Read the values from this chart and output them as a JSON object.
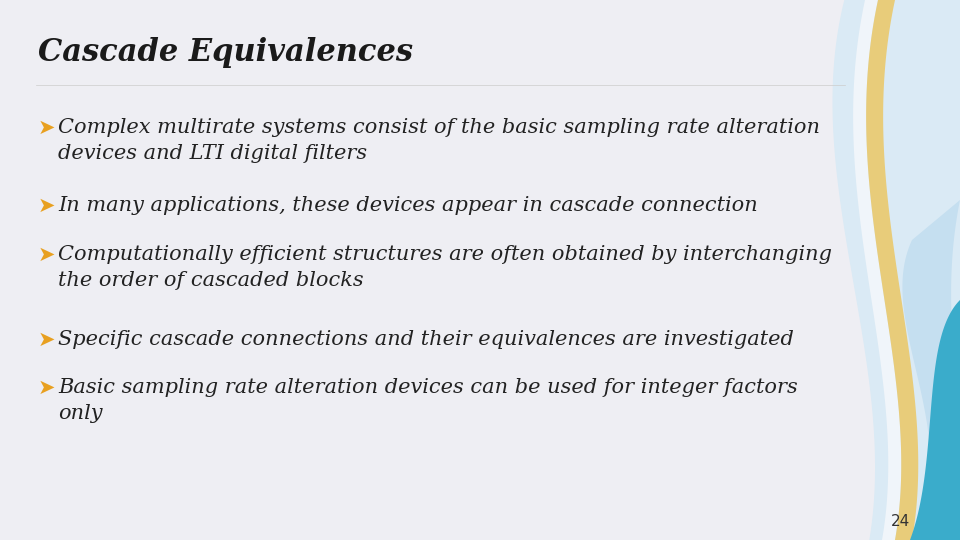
{
  "title": "Cascade Equivalences",
  "background_color": "#eeeef3",
  "title_color": "#1a1a1a",
  "text_color": "#222222",
  "bullet_color": "#e8a020",
  "bullet_symbol": "➤",
  "bullets": [
    [
      "Complex multirate systems consist of the basic sampling rate alteration",
      "    devices and LTI digital filters"
    ],
    [
      "In many applications, these devices appear in cascade connection"
    ],
    [
      "Computationally efficient structures are often obtained by interchanging",
      "    the order of cascaded blocks"
    ],
    [
      "Specific cascade connections and their equivalences are investigated"
    ],
    [
      "Basic sampling rate alteration devices can be used for integer factors",
      "    only"
    ]
  ],
  "page_number": "24",
  "wave_colors": {
    "light_blue_bg": "#daeaf5",
    "light_blue2": "#c5dff0",
    "white_stripe": "#f0f5fa",
    "gold": "#e8cc7a",
    "teal": "#3aaccb",
    "teal2": "#2899be"
  },
  "title_fontsize": 22,
  "bullet_fontsize": 15
}
